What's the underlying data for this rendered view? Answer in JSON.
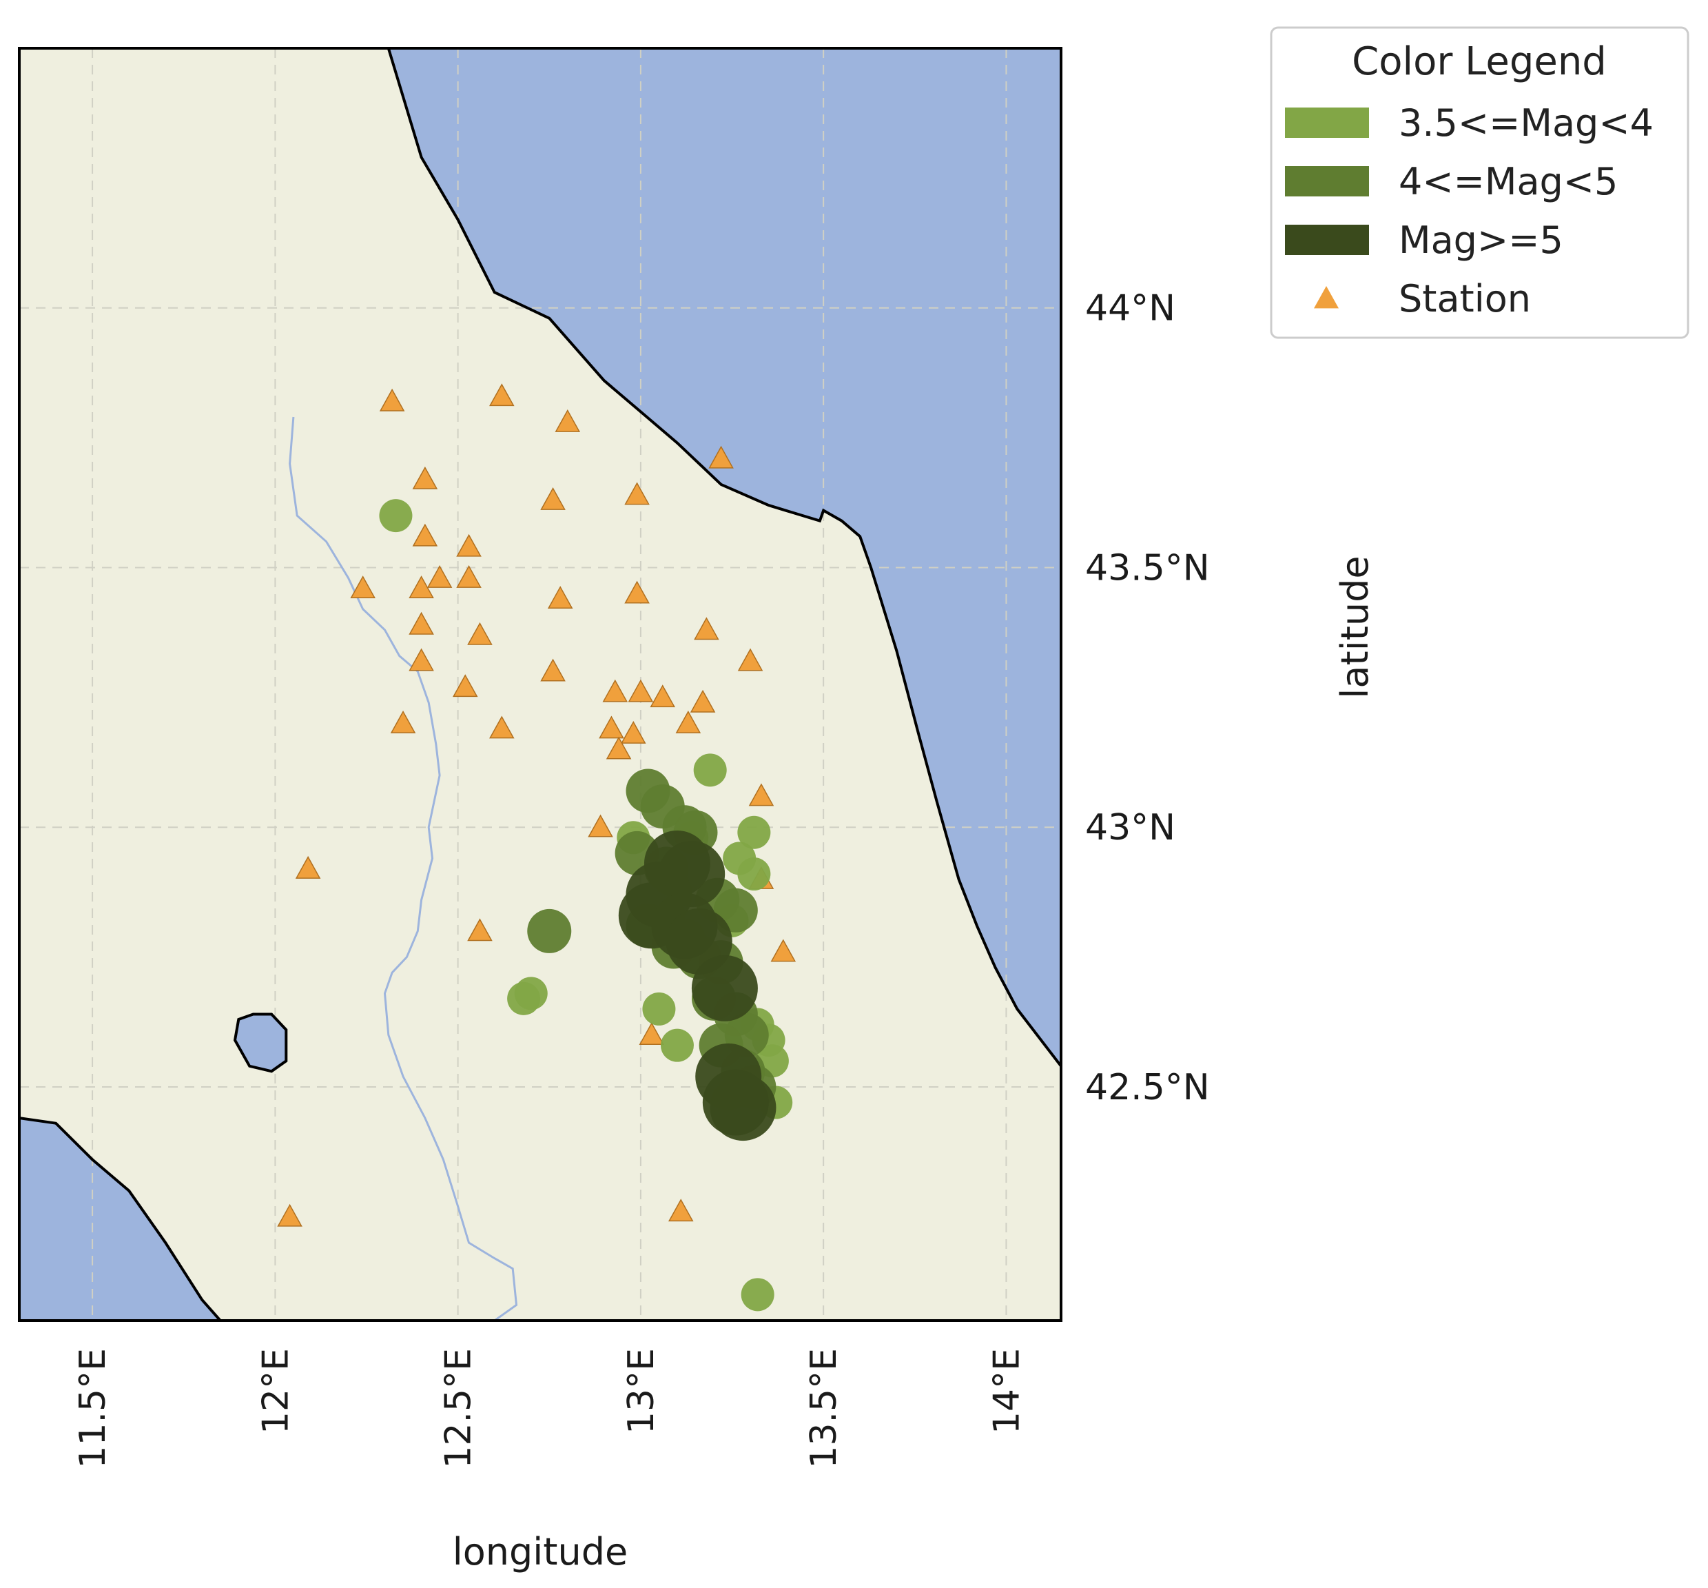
{
  "colors": {
    "land": "#efefdf",
    "sea": "#9db4dd",
    "river": "#9db4dd",
    "coast": "#000000",
    "grid": "#d0d0c4",
    "station": "#f0a03c",
    "mag_low": "#82a646",
    "mag_mid": "#5f7d30",
    "mag_high": "#3a4a1c"
  },
  "chart_data": {
    "type": "scatter",
    "xlabel": "longitude",
    "ylabel": "latitude",
    "xlim": [
      11.3,
      14.15
    ],
    "ylim": [
      42.05,
      44.5
    ],
    "xticks": [
      {
        "value": 11.5,
        "label": "11.5°E"
      },
      {
        "value": 12.0,
        "label": "12°E"
      },
      {
        "value": 12.5,
        "label": "12.5°E"
      },
      {
        "value": 13.0,
        "label": "13°E"
      },
      {
        "value": 13.5,
        "label": "13.5°E"
      },
      {
        "value": 14.0,
        "label": "14°E"
      }
    ],
    "yticks": [
      {
        "value": 42.5,
        "label": "42.5°N"
      },
      {
        "value": 43.0,
        "label": "43°N"
      },
      {
        "value": 43.5,
        "label": "43.5°N"
      },
      {
        "value": 44.0,
        "label": "44°N"
      }
    ],
    "grid": true,
    "legend": {
      "title": "Color Legend",
      "placement": "outside-top-right",
      "entries": [
        {
          "label": "3.5<=Mag<4",
          "color": "#82a646",
          "marker": "patch"
        },
        {
          "label": "4<=Mag<5",
          "color": "#5f7d30",
          "marker": "patch"
        },
        {
          "label": "Mag>=5",
          "color": "#3a4a1c",
          "marker": "patch"
        },
        {
          "label": "Station",
          "color": "#f0a03c",
          "marker": "triangle"
        }
      ]
    },
    "coastline_ne": [
      [
        12.31,
        44.5
      ],
      [
        12.4,
        44.29
      ],
      [
        12.5,
        44.17
      ],
      [
        12.6,
        44.03
      ],
      [
        12.75,
        43.98
      ],
      [
        12.9,
        43.86
      ],
      [
        13.0,
        43.8
      ],
      [
        13.1,
        43.74
      ],
      [
        13.22,
        43.66
      ],
      [
        13.35,
        43.62
      ],
      [
        13.49,
        43.59
      ],
      [
        13.5,
        43.61
      ],
      [
        13.55,
        43.59
      ],
      [
        13.6,
        43.56
      ],
      [
        13.63,
        43.5
      ],
      [
        13.7,
        43.34
      ],
      [
        13.76,
        43.18
      ],
      [
        13.81,
        43.05
      ],
      [
        13.83,
        43.0
      ],
      [
        13.87,
        42.9
      ],
      [
        13.92,
        42.81
      ],
      [
        13.97,
        42.73
      ],
      [
        14.03,
        42.65
      ],
      [
        14.15,
        42.54
      ]
    ],
    "coastline_sw": [
      [
        11.3,
        42.44
      ],
      [
        11.4,
        42.43
      ],
      [
        11.5,
        42.36
      ],
      [
        11.6,
        42.3
      ],
      [
        11.7,
        42.2
      ],
      [
        11.8,
        42.09
      ],
      [
        11.85,
        42.05
      ]
    ],
    "lake": [
      [
        11.94,
        42.64
      ],
      [
        11.99,
        42.64
      ],
      [
        12.03,
        42.61
      ],
      [
        12.03,
        42.55
      ],
      [
        11.99,
        42.53
      ],
      [
        11.93,
        42.54
      ],
      [
        11.89,
        42.59
      ],
      [
        11.9,
        42.63
      ],
      [
        11.94,
        42.64
      ]
    ],
    "river": [
      [
        12.05,
        43.79
      ],
      [
        12.04,
        43.7
      ],
      [
        12.06,
        43.6
      ],
      [
        12.14,
        43.55
      ],
      [
        12.2,
        43.48
      ],
      [
        12.24,
        43.42
      ],
      [
        12.3,
        43.38
      ],
      [
        12.34,
        43.33
      ],
      [
        12.39,
        43.3
      ],
      [
        12.42,
        43.24
      ],
      [
        12.44,
        43.16
      ],
      [
        12.45,
        43.1
      ],
      [
        12.42,
        43.0
      ],
      [
        12.43,
        42.94
      ],
      [
        12.4,
        42.86
      ],
      [
        12.39,
        42.8
      ],
      [
        12.36,
        42.75
      ],
      [
        12.32,
        42.72
      ],
      [
        12.3,
        42.68
      ],
      [
        12.31,
        42.6
      ],
      [
        12.35,
        42.52
      ],
      [
        12.41,
        42.44
      ],
      [
        12.46,
        42.36
      ],
      [
        12.5,
        42.27
      ],
      [
        12.53,
        42.2
      ],
      [
        12.6,
        42.17
      ],
      [
        12.65,
        42.15
      ],
      [
        12.66,
        42.08
      ],
      [
        12.6,
        42.05
      ]
    ],
    "stations": [
      {
        "lon": 12.32,
        "lat": 43.82
      },
      {
        "lon": 12.62,
        "lat": 43.83
      },
      {
        "lon": 12.8,
        "lat": 43.78
      },
      {
        "lon": 12.41,
        "lat": 43.67
      },
      {
        "lon": 12.76,
        "lat": 43.63
      },
      {
        "lon": 12.99,
        "lat": 43.64
      },
      {
        "lon": 13.22,
        "lat": 43.71
      },
      {
        "lon": 12.41,
        "lat": 43.56
      },
      {
        "lon": 12.53,
        "lat": 43.54
      },
      {
        "lon": 12.45,
        "lat": 43.48
      },
      {
        "lon": 12.53,
        "lat": 43.48
      },
      {
        "lon": 12.24,
        "lat": 43.46
      },
      {
        "lon": 12.4,
        "lat": 43.46
      },
      {
        "lon": 12.78,
        "lat": 43.44
      },
      {
        "lon": 12.99,
        "lat": 43.45
      },
      {
        "lon": 12.4,
        "lat": 43.39
      },
      {
        "lon": 12.56,
        "lat": 43.37
      },
      {
        "lon": 13.18,
        "lat": 43.38
      },
      {
        "lon": 12.4,
        "lat": 43.32
      },
      {
        "lon": 12.76,
        "lat": 43.3
      },
      {
        "lon": 13.3,
        "lat": 43.32
      },
      {
        "lon": 12.52,
        "lat": 43.27
      },
      {
        "lon": 12.93,
        "lat": 43.26
      },
      {
        "lon": 13.0,
        "lat": 43.26
      },
      {
        "lon": 13.06,
        "lat": 43.25
      },
      {
        "lon": 13.17,
        "lat": 43.24
      },
      {
        "lon": 12.35,
        "lat": 43.2
      },
      {
        "lon": 12.62,
        "lat": 43.19
      },
      {
        "lon": 12.92,
        "lat": 43.19
      },
      {
        "lon": 12.98,
        "lat": 43.18
      },
      {
        "lon": 13.13,
        "lat": 43.2
      },
      {
        "lon": 12.94,
        "lat": 43.15
      },
      {
        "lon": 13.33,
        "lat": 43.06
      },
      {
        "lon": 12.89,
        "lat": 43.0
      },
      {
        "lon": 12.09,
        "lat": 42.92
      },
      {
        "lon": 13.33,
        "lat": 42.9
      },
      {
        "lon": 12.56,
        "lat": 42.8
      },
      {
        "lon": 13.39,
        "lat": 42.76
      },
      {
        "lon": 13.03,
        "lat": 42.6
      },
      {
        "lon": 12.04,
        "lat": 42.25
      },
      {
        "lon": 13.11,
        "lat": 42.26
      }
    ],
    "events": [
      {
        "lon": 12.33,
        "lat": 43.6,
        "mag": "low"
      },
      {
        "lon": 13.19,
        "lat": 43.11,
        "mag": "low"
      },
      {
        "lon": 13.31,
        "lat": 42.99,
        "mag": "low"
      },
      {
        "lon": 13.31,
        "lat": 42.91,
        "mag": "low"
      },
      {
        "lon": 12.68,
        "lat": 42.67,
        "mag": "low"
      },
      {
        "lon": 12.7,
        "lat": 42.68,
        "mag": "low"
      },
      {
        "lon": 13.32,
        "lat": 42.1,
        "mag": "low"
      },
      {
        "lon": 13.37,
        "lat": 42.47,
        "mag": "low"
      },
      {
        "lon": 13.36,
        "lat": 42.55,
        "mag": "low"
      },
      {
        "lon": 13.1,
        "lat": 42.58,
        "mag": "low"
      },
      {
        "lon": 13.05,
        "lat": 42.65,
        "mag": "low"
      },
      {
        "lon": 12.98,
        "lat": 42.98,
        "mag": "low"
      },
      {
        "lon": 13.14,
        "lat": 42.98,
        "mag": "low"
      },
      {
        "lon": 13.27,
        "lat": 42.94,
        "mag": "low"
      },
      {
        "lon": 13.25,
        "lat": 42.82,
        "mag": "low"
      },
      {
        "lon": 13.13,
        "lat": 42.79,
        "mag": "low"
      },
      {
        "lon": 13.32,
        "lat": 42.62,
        "mag": "low"
      },
      {
        "lon": 13.35,
        "lat": 42.59,
        "mag": "low"
      },
      {
        "lon": 13.02,
        "lat": 43.07,
        "mag": "mid"
      },
      {
        "lon": 13.06,
        "lat": 43.04,
        "mag": "mid"
      },
      {
        "lon": 13.12,
        "lat": 43.0,
        "mag": "mid"
      },
      {
        "lon": 13.15,
        "lat": 42.99,
        "mag": "mid"
      },
      {
        "lon": 12.99,
        "lat": 42.95,
        "mag": "mid"
      },
      {
        "lon": 13.07,
        "lat": 42.92,
        "mag": "mid"
      },
      {
        "lon": 13.21,
        "lat": 42.86,
        "mag": "mid"
      },
      {
        "lon": 13.26,
        "lat": 42.84,
        "mag": "mid"
      },
      {
        "lon": 13.02,
        "lat": 42.81,
        "mag": "mid"
      },
      {
        "lon": 13.09,
        "lat": 42.77,
        "mag": "mid"
      },
      {
        "lon": 13.16,
        "lat": 42.75,
        "mag": "mid"
      },
      {
        "lon": 13.22,
        "lat": 42.74,
        "mag": "mid"
      },
      {
        "lon": 13.2,
        "lat": 42.67,
        "mag": "mid"
      },
      {
        "lon": 13.26,
        "lat": 42.64,
        "mag": "mid"
      },
      {
        "lon": 13.29,
        "lat": 42.6,
        "mag": "mid"
      },
      {
        "lon": 13.22,
        "lat": 42.58,
        "mag": "mid"
      },
      {
        "lon": 13.28,
        "lat": 42.53,
        "mag": "mid"
      },
      {
        "lon": 13.31,
        "lat": 42.5,
        "mag": "mid"
      },
      {
        "lon": 12.75,
        "lat": 42.8,
        "mag": "mid"
      },
      {
        "lon": 13.1,
        "lat": 42.93,
        "mag": "high"
      },
      {
        "lon": 13.14,
        "lat": 42.91,
        "mag": "high"
      },
      {
        "lon": 13.05,
        "lat": 42.87,
        "mag": "high"
      },
      {
        "lon": 13.03,
        "lat": 42.83,
        "mag": "high"
      },
      {
        "lon": 13.12,
        "lat": 42.81,
        "mag": "high"
      },
      {
        "lon": 13.16,
        "lat": 42.78,
        "mag": "high"
      },
      {
        "lon": 13.23,
        "lat": 42.69,
        "mag": "high"
      },
      {
        "lon": 13.24,
        "lat": 42.52,
        "mag": "high"
      },
      {
        "lon": 13.28,
        "lat": 42.46,
        "mag": "high"
      },
      {
        "lon": 13.26,
        "lat": 42.47,
        "mag": "high"
      }
    ]
  }
}
